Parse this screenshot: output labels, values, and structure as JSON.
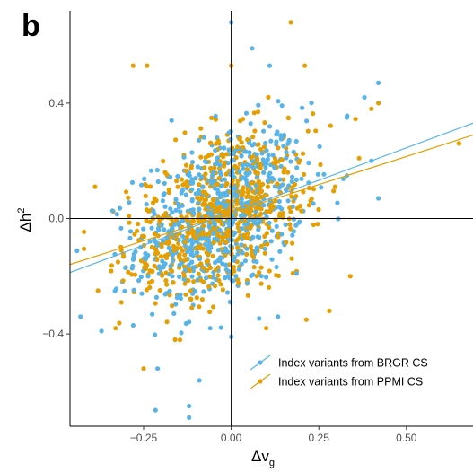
{
  "panel_label": "b",
  "colors": {
    "brgr": "#56B4E9",
    "ppmi": "#E69F00",
    "axis": "#000000",
    "tick_text": "#4d4d4d"
  },
  "chart_data": {
    "type": "scatter",
    "xlabel_base": "Δv",
    "xlabel_sub": "g",
    "ylabel_base": "Δh",
    "ylabel_sup": "2",
    "xlim": [
      -0.46,
      0.69
    ],
    "ylim": [
      -0.72,
      0.72
    ],
    "x_ticks": [
      -0.25,
      0.0,
      0.25,
      0.5
    ],
    "x_tick_labels": [
      "−0.25",
      "0.00",
      "0.25",
      "0.50"
    ],
    "y_ticks": [
      -0.4,
      0.0,
      0.4
    ],
    "y_tick_labels": [
      "−0.4",
      "0.0",
      "0.4"
    ],
    "reference_lines": {
      "x": 0,
      "y": 0
    },
    "legend_position": "bottom-right",
    "series": [
      {
        "name": "Index variants from BRGR CS",
        "color": "#56B4E9",
        "n_points": 700,
        "fit": {
          "intercept": 0.02,
          "slope": 0.45
        },
        "points": [
          [
            0.0,
            0.68
          ],
          [
            -0.12,
            -0.69
          ],
          [
            -0.12,
            -0.65
          ],
          [
            0.42,
            0.47
          ],
          [
            0.38,
            0.42
          ],
          [
            0.33,
            0.35
          ],
          [
            0.4,
            0.2
          ],
          [
            0.42,
            0.07
          ],
          [
            -0.43,
            -0.34
          ],
          [
            -0.37,
            -0.39
          ],
          [
            -0.21,
            -0.52
          ],
          [
            -0.06,
            -0.38
          ],
          [
            0.0,
            -0.41
          ],
          [
            -0.17,
            0.34
          ],
          [
            0.11,
            0.53
          ],
          [
            0.06,
            0.59
          ]
        ]
      },
      {
        "name": "Index variants from PPMI CS",
        "color": "#E69F00",
        "n_points": 700,
        "fit": {
          "intercept": 0.02,
          "slope": 0.39
        },
        "points": [
          [
            0.17,
            0.68
          ],
          [
            0.65,
            0.26
          ],
          [
            -0.25,
            -0.52
          ],
          [
            -0.28,
            0.53
          ],
          [
            -0.24,
            0.53
          ],
          [
            0.0,
            0.53
          ],
          [
            0.21,
            0.53
          ],
          [
            0.4,
            0.38
          ],
          [
            0.42,
            0.4
          ],
          [
            -0.38,
            -0.25
          ],
          [
            -0.33,
            -0.38
          ],
          [
            -0.16,
            -0.42
          ],
          [
            0.1,
            -0.38
          ],
          [
            0.28,
            -0.32
          ],
          [
            0.34,
            -0.2
          ]
        ]
      }
    ]
  }
}
